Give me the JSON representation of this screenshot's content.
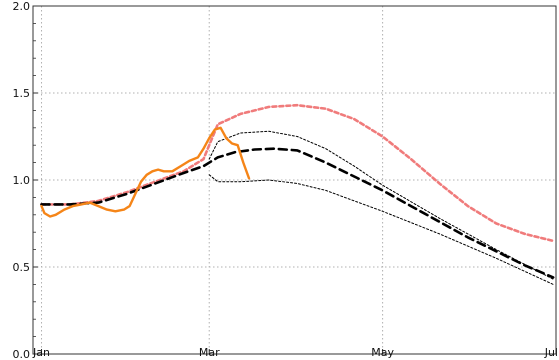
{
  "chart_data": {
    "type": "line",
    "title": "",
    "xlabel": "",
    "ylabel": "",
    "x_axis": {
      "ticks": [
        {
          "label": "Jan",
          "day": 0
        },
        {
          "label": "Mar",
          "day": 59
        },
        {
          "label": "May",
          "day": 120
        },
        {
          "label": "Jul",
          "day": 181
        }
      ],
      "range": [
        -3,
        181
      ]
    },
    "y_axis": {
      "range": [
        0.0,
        2.0
      ],
      "ticks": [
        {
          "label": "0.0",
          "value": 0.0
        },
        {
          "label": "0.5",
          "value": 0.5
        },
        {
          "label": "1.0",
          "value": 1.0
        },
        {
          "label": "1.5",
          "value": 1.5
        },
        {
          "label": "2.0",
          "value": 2.0
        }
      ]
    },
    "grid": true,
    "colors": {
      "observed": "#f58518",
      "upper_scenario": "#f07b7b",
      "central": "#000000",
      "bounds": "#000000",
      "grid": "#b0b0b0",
      "frame": "#333333"
    },
    "series": [
      {
        "key": "upper_scenario",
        "points": [
          [
            0,
            0.86
          ],
          [
            10,
            0.86
          ],
          [
            20,
            0.88
          ],
          [
            30,
            0.93
          ],
          [
            40,
            0.99
          ],
          [
            50,
            1.05
          ],
          [
            57,
            1.12
          ],
          [
            62,
            1.32
          ],
          [
            70,
            1.38
          ],
          [
            80,
            1.42
          ],
          [
            90,
            1.43
          ],
          [
            100,
            1.41
          ],
          [
            110,
            1.35
          ],
          [
            120,
            1.25
          ],
          [
            130,
            1.12
          ],
          [
            140,
            0.98
          ],
          [
            150,
            0.85
          ],
          [
            160,
            0.75
          ],
          [
            170,
            0.69
          ],
          [
            180,
            0.65
          ]
        ]
      },
      {
        "key": "upper_bound",
        "points": [
          [
            59,
            1.12
          ],
          [
            62,
            1.22
          ],
          [
            70,
            1.27
          ],
          [
            80,
            1.28
          ],
          [
            90,
            1.25
          ],
          [
            100,
            1.18
          ],
          [
            110,
            1.08
          ],
          [
            120,
            0.97
          ],
          [
            140,
            0.78
          ],
          [
            160,
            0.6
          ],
          [
            180,
            0.43
          ]
        ]
      },
      {
        "key": "lower_bound",
        "points": [
          [
            59,
            1.03
          ],
          [
            62,
            0.99
          ],
          [
            70,
            0.99
          ],
          [
            80,
            1.0
          ],
          [
            90,
            0.98
          ],
          [
            100,
            0.94
          ],
          [
            110,
            0.88
          ],
          [
            120,
            0.82
          ],
          [
            140,
            0.69
          ],
          [
            160,
            0.55
          ],
          [
            180,
            0.4
          ]
        ]
      },
      {
        "key": "central",
        "points": [
          [
            0,
            0.86
          ],
          [
            10,
            0.86
          ],
          [
            20,
            0.87
          ],
          [
            30,
            0.92
          ],
          [
            40,
            0.98
          ],
          [
            50,
            1.04
          ],
          [
            57,
            1.08
          ],
          [
            62,
            1.13
          ],
          [
            68,
            1.16
          ],
          [
            75,
            1.175
          ],
          [
            82,
            1.18
          ],
          [
            90,
            1.17
          ],
          [
            100,
            1.1
          ],
          [
            110,
            1.02
          ],
          [
            120,
            0.94
          ],
          [
            130,
            0.85
          ],
          [
            140,
            0.76
          ],
          [
            150,
            0.67
          ],
          [
            160,
            0.59
          ],
          [
            170,
            0.51
          ],
          [
            180,
            0.44
          ]
        ]
      },
      {
        "key": "observed",
        "points": [
          [
            0,
            0.85
          ],
          [
            1,
            0.81
          ],
          [
            3,
            0.79
          ],
          [
            5,
            0.8
          ],
          [
            8,
            0.83
          ],
          [
            11,
            0.85
          ],
          [
            14,
            0.86
          ],
          [
            17,
            0.87
          ],
          [
            20,
            0.85
          ],
          [
            23,
            0.83
          ],
          [
            26,
            0.82
          ],
          [
            29,
            0.83
          ],
          [
            31,
            0.85
          ],
          [
            33,
            0.92
          ],
          [
            35,
            0.99
          ],
          [
            37,
            1.03
          ],
          [
            39,
            1.05
          ],
          [
            41,
            1.06
          ],
          [
            43,
            1.05
          ],
          [
            46,
            1.05
          ],
          [
            49,
            1.08
          ],
          [
            52,
            1.11
          ],
          [
            55,
            1.13
          ],
          [
            57,
            1.18
          ],
          [
            59,
            1.24
          ],
          [
            61,
            1.29
          ],
          [
            63,
            1.3
          ],
          [
            65,
            1.24
          ],
          [
            67,
            1.21
          ],
          [
            69,
            1.2
          ],
          [
            71,
            1.1
          ],
          [
            73,
            1.01
          ]
        ]
      }
    ]
  }
}
